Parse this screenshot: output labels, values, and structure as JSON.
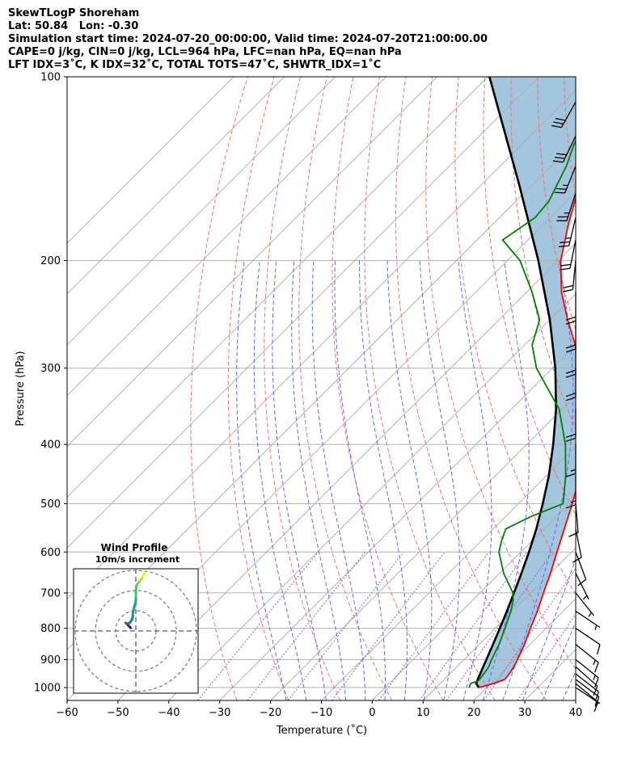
{
  "header": {
    "title": "SkewTLogP Shoreham",
    "location": "Lat: 50.84   Lon: -0.30",
    "times": "Simulation start time: 2024-07-20_00:00:00, Valid time: 2024-07-20T21:00:00.00",
    "indices_1": "CAPE=0 j/kg, CIN=0 j/kg, LCL=964 hPa, LFC=nan hPa, EQ=nan hPa",
    "indices_2": "LFT IDX=3˚C, K IDX=32˚C, TOTAL TOTS=47˚C, SHWTR_IDX=1˚C"
  },
  "chart_data": {
    "type": "skewt",
    "xlabel": "Temperature (˚C)",
    "ylabel": "Pressure (hPa)",
    "xlim": [
      -60,
      40
    ],
    "ylim": [
      1050,
      100
    ],
    "xticks": [
      -60,
      -50,
      -40,
      -30,
      -20,
      -10,
      0,
      10,
      20,
      30,
      40
    ],
    "xtick_labels": [
      "−60",
      "−50",
      "−40",
      "−30",
      "−20",
      "−10",
      "0",
      "10",
      "20",
      "30",
      "40"
    ],
    "yticks": [
      100,
      200,
      300,
      400,
      500,
      600,
      700,
      800,
      900,
      1000
    ],
    "yticks_labels": [
      "100",
      "200",
      "300",
      "400",
      "500",
      "600",
      "700",
      "800",
      "900",
      "1000"
    ],
    "temperature": {
      "color": "#ff0000",
      "pressure": [
        1000,
        985,
        970,
        950,
        925,
        900,
        850,
        800,
        750,
        700,
        650,
        600,
        550,
        500,
        450,
        400,
        350,
        300,
        275,
        250,
        225,
        200,
        175,
        150,
        140,
        130,
        120,
        110,
        100
      ],
      "values": [
        18.4,
        20.5,
        21.9,
        21.7,
        21.2,
        20.5,
        18.9,
        16.9,
        14.9,
        12.5,
        10.0,
        7.1,
        4.0,
        0.6,
        -3.4,
        -8.4,
        -14.9,
        -24.2,
        -30.0,
        -36.5,
        -43.2,
        -49.5,
        -55.0,
        -60.8,
        -62.5,
        -63.5,
        -65.0,
        -66.0,
        -67.0
      ]
    },
    "dewpoint": {
      "color": "#008000",
      "pressure": [
        1000,
        985,
        975,
        950,
        925,
        900,
        850,
        800,
        750,
        720,
        700,
        650,
        600,
        575,
        550,
        525,
        500,
        450,
        400,
        350,
        300,
        275,
        250,
        225,
        200,
        185,
        170,
        160,
        140,
        130,
        120,
        110,
        100
      ],
      "values": [
        16.5,
        16.0,
        17.0,
        16.7,
        16.3,
        15.4,
        13.9,
        11.9,
        9.7,
        8.0,
        6.5,
        0.8,
        -4.3,
        -6.0,
        -7.5,
        -5.0,
        -1.2,
        -6.2,
        -12.4,
        -20.6,
        -33.1,
        -38.5,
        -42.0,
        -49.0,
        -57.5,
        -65.0,
        -63.0,
        -63.5,
        -67.0,
        -69.5,
        -72.0,
        -74.5,
        -77.0
      ]
    },
    "parcel": {
      "color": "#000000",
      "pressure": [
        1000,
        985,
        970,
        964,
        950,
        925,
        900,
        850,
        800,
        750,
        700,
        650,
        600,
        550,
        500,
        450,
        400,
        350,
        300,
        250,
        200,
        150,
        100
      ],
      "values": [
        18.4,
        17.1,
        16.6,
        16.4,
        16.0,
        15.2,
        14.4,
        12.7,
        10.9,
        8.9,
        6.7,
        4.3,
        1.6,
        -1.5,
        -5.2,
        -9.5,
        -14.8,
        -21.2,
        -29.4,
        -40.0,
        -53.9,
        -72.7,
        -99.7
      ]
    },
    "shaded_region": "CIN area between parcel and environment temperature (#a3c6de)",
    "wind_barbs": {
      "pressure": [
        1000,
        985,
        970,
        950,
        925,
        900,
        850,
        800,
        750,
        700,
        650,
        600,
        550,
        500,
        450,
        400,
        350,
        300,
        275,
        250,
        225,
        200,
        185,
        170,
        155,
        140,
        125,
        110
      ],
      "u_kt": [
        -6,
        -6,
        -8,
        -9,
        -9,
        -10,
        -10,
        -9,
        -6,
        -4,
        -3,
        -3,
        -2,
        -1,
        0,
        0,
        0,
        0,
        0,
        0,
        0,
        2,
        4,
        6,
        8,
        10,
        12,
        14
      ],
      "v_kt": [
        4,
        5,
        6,
        7,
        8,
        8,
        8,
        6,
        4,
        5,
        6,
        8,
        10,
        12,
        14,
        16,
        18,
        20,
        20,
        20,
        20,
        20,
        20,
        25,
        25,
        25,
        25,
        25
      ]
    },
    "hodograph": {
      "title": "Wind Profile",
      "subtitle": "10m/s increment",
      "rings_ms": [
        10,
        20,
        30
      ],
      "u_ms": [
        -2.5,
        -3.0,
        -3.5,
        -4.0,
        -4.5,
        -5.0,
        -5.0,
        -4.5,
        -3.0,
        -2.0,
        -1.5,
        -1.5,
        -1.0,
        -0.5,
        0,
        0,
        0,
        0.5,
        1.5,
        2.0,
        3.0,
        3.5,
        4.0,
        4.5
      ],
      "v_ms": [
        1.5,
        2.0,
        2.5,
        3.0,
        3.5,
        4.0,
        4.0,
        3.5,
        4.0,
        5.5,
        7.0,
        9.0,
        11.0,
        13.0,
        15.0,
        17.0,
        20.0,
        23.0,
        24.0,
        25.0,
        26.0,
        27.0,
        28.0,
        29.0
      ]
    }
  }
}
